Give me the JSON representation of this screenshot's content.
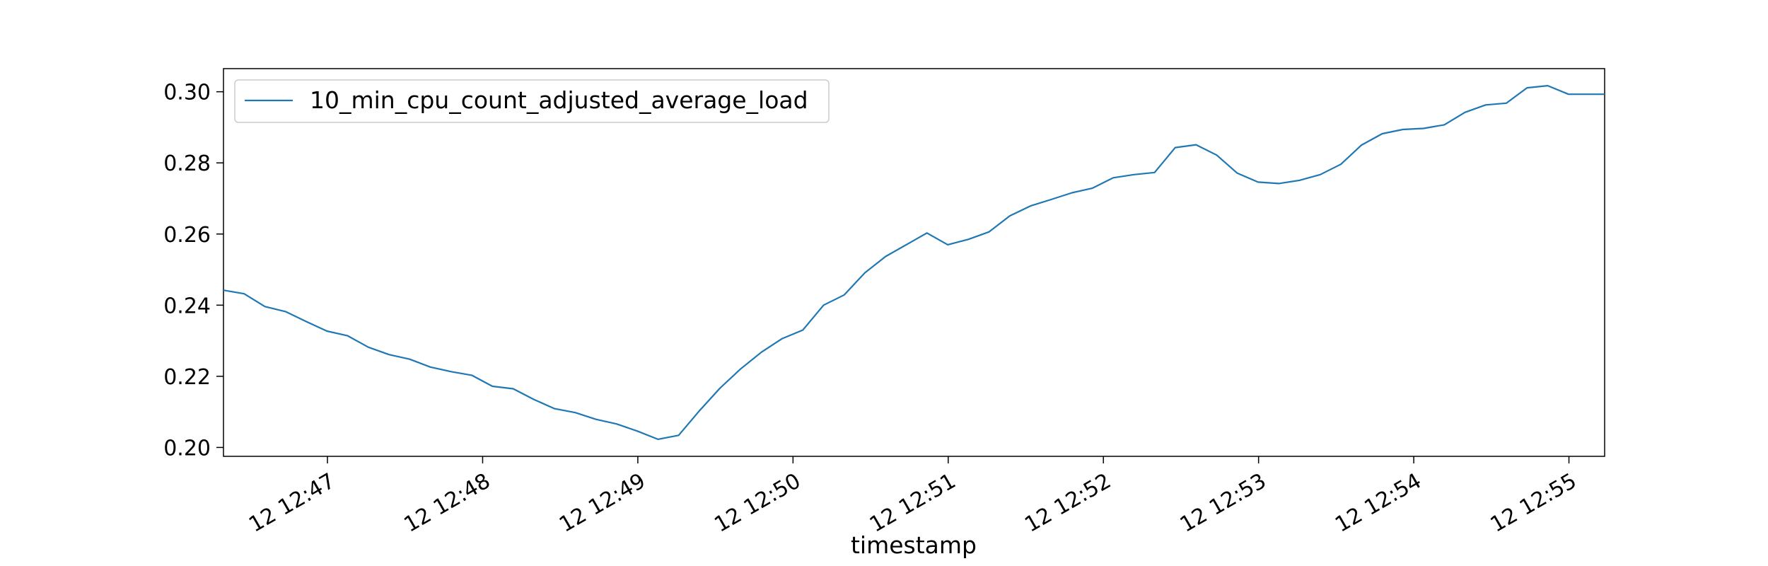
{
  "chart_data": {
    "type": "line",
    "title": "",
    "xlabel": "timestamp",
    "ylabel": "",
    "ylim": [
      0.1975,
      0.3065
    ],
    "grid": false,
    "legend_position": "top-left",
    "x_tick_labels": [
      "12 12:47",
      "12 12:48",
      "12 12:49",
      "12 12:50",
      "12 12:51",
      "12 12:52",
      "12 12:53",
      "12 12:54",
      "12 12:55"
    ],
    "y_tick_labels": [
      "0.20",
      "0.22",
      "0.24",
      "0.26",
      "0.28",
      "0.30"
    ],
    "y_ticks": [
      0.2,
      0.22,
      0.24,
      0.26,
      0.28,
      0.3
    ],
    "x_range_minutes": [
      0,
      8.9
    ],
    "x_tick_minutes": [
      0.67,
      1.67,
      2.67,
      3.67,
      4.67,
      5.67,
      6.67,
      7.67,
      8.67
    ],
    "series": [
      {
        "name": "10_min_cpu_count_adjusted_average_load",
        "color": "#1f77b4",
        "minutes": [
          0,
          0.133,
          0.267,
          0.4,
          0.533,
          0.667,
          0.8,
          0.933,
          1.067,
          1.2,
          1.333,
          1.467,
          1.6,
          1.733,
          1.867,
          2.0,
          2.133,
          2.267,
          2.4,
          2.533,
          2.667,
          2.8,
          2.933,
          3.067,
          3.2,
          3.333,
          3.467,
          3.6,
          3.733,
          3.867,
          4.0,
          4.133,
          4.267,
          4.4,
          4.533,
          4.667,
          4.8,
          4.933,
          5.067,
          5.2,
          5.333,
          5.467,
          5.6,
          5.733,
          5.867,
          6.0,
          6.133,
          6.267,
          6.4,
          6.533,
          6.667,
          6.8,
          6.933,
          7.067,
          7.2,
          7.333,
          7.467,
          7.6,
          7.733,
          7.867,
          8.0,
          8.133,
          8.267,
          8.4,
          8.533,
          8.667,
          8.8,
          8.9
        ],
        "values": [
          0.2442,
          0.2432,
          0.2396,
          0.2382,
          0.2354,
          0.2327,
          0.2314,
          0.2282,
          0.2261,
          0.2248,
          0.2226,
          0.2213,
          0.2203,
          0.2172,
          0.2165,
          0.2135,
          0.2109,
          0.2098,
          0.2079,
          0.2066,
          0.2046,
          0.2023,
          0.2034,
          0.2103,
          0.2167,
          0.2221,
          0.2268,
          0.2306,
          0.233,
          0.24,
          0.2429,
          0.2491,
          0.2537,
          0.257,
          0.2603,
          0.257,
          0.2585,
          0.2606,
          0.2651,
          0.2679,
          0.2697,
          0.2716,
          0.2729,
          0.2758,
          0.2767,
          0.2773,
          0.2843,
          0.2851,
          0.2822,
          0.2771,
          0.2746,
          0.2742,
          0.2751,
          0.2767,
          0.2796,
          0.285,
          0.2882,
          0.2894,
          0.2897,
          0.2907,
          0.2942,
          0.2963,
          0.2968,
          0.3011,
          0.3017,
          0.2993,
          0.2993,
          0.2993
        ]
      }
    ]
  }
}
